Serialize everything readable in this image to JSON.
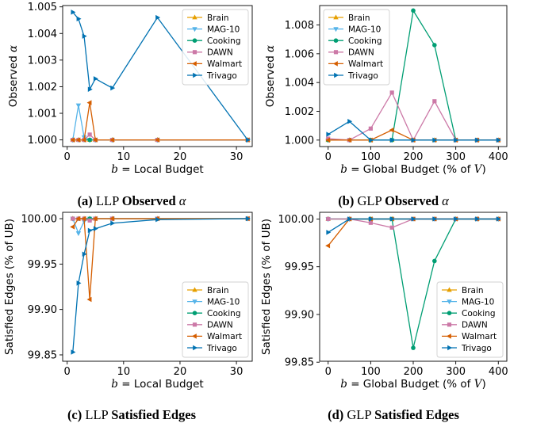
{
  "colors": {
    "Brain": "#E69F00",
    "MAG-10": "#56B4E9",
    "Cooking": "#009E73",
    "DAWN": "#CC79A7",
    "Walmart": "#D55E00",
    "Trivago": "#0072B2"
  },
  "chart_data": [
    {
      "type": "line",
      "id": "a",
      "caption": {
        "tag": "(a)",
        "plain": "LLP",
        "bold": "Observed",
        "math": "α"
      },
      "xlabel": {
        "var": "b",
        "rest": " = Local Budget"
      },
      "ylabel": {
        "text": "Observed ",
        "math": "α"
      },
      "xlim": [
        -0.8,
        32.8
      ],
      "ylim": [
        0.99975,
        1.00505
      ],
      "xticks": [
        0,
        10,
        20,
        30
      ],
      "yticks": [
        1.0,
        1.001,
        1.002,
        1.003,
        1.004,
        1.005
      ],
      "ytick_labels": [
        "1.000",
        "1.001",
        "1.002",
        "1.003",
        "1.004",
        "1.005"
      ],
      "legend": "top-right",
      "series": [
        {
          "name": "Brain",
          "marker": "tri-up",
          "x": [
            1,
            2,
            3,
            4,
            5,
            8,
            16,
            32
          ],
          "y": [
            1.0,
            1.0,
            1.0,
            1.0,
            1.0,
            1.0,
            1.0,
            1.0
          ]
        },
        {
          "name": "MAG-10",
          "marker": "tri-down",
          "x": [
            1,
            2,
            3,
            4,
            5,
            8,
            16,
            32
          ],
          "y": [
            1.0,
            1.0013,
            1.0001,
            1.0,
            1.0,
            1.0,
            1.0,
            1.0
          ]
        },
        {
          "name": "Cooking",
          "marker": "circle",
          "x": [
            1,
            2,
            3,
            4,
            5,
            8,
            16,
            32
          ],
          "y": [
            1.0,
            1.0,
            1.0,
            1.0,
            1.0,
            1.0,
            1.0,
            1.0
          ]
        },
        {
          "name": "DAWN",
          "marker": "square",
          "x": [
            1,
            2,
            3,
            4,
            5,
            8,
            16,
            32
          ],
          "y": [
            1.0,
            1.0,
            1.0,
            1.0002,
            1.0,
            1.0,
            1.0,
            1.0
          ]
        },
        {
          "name": "Walmart",
          "marker": "tri-left",
          "x": [
            1,
            2,
            3,
            4,
            5,
            8,
            16,
            32
          ],
          "y": [
            1.0,
            1.0,
            1.0,
            1.0014,
            1.0,
            1.0,
            1.0,
            1.0
          ]
        },
        {
          "name": "Trivago",
          "marker": "tri-right",
          "x": [
            1,
            2,
            3,
            4,
            5,
            8,
            16,
            32
          ],
          "y": [
            1.0048,
            1.00455,
            1.0039,
            1.0019,
            1.0023,
            1.00195,
            1.0046,
            1.0
          ]
        }
      ]
    },
    {
      "type": "line",
      "id": "b",
      "caption": {
        "tag": "(b)",
        "plain": "GLP",
        "bold": "Observed",
        "math": "α"
      },
      "xlabel": {
        "var": "b",
        "rest": " = Global Budget (% of ",
        "var2": "V",
        "rest2": ")"
      },
      "ylabel": {
        "text": "Observed ",
        "math": "α"
      },
      "xlim": [
        -20,
        420
      ],
      "ylim": [
        0.99955,
        1.00935
      ],
      "xticks": [
        0,
        100,
        200,
        300,
        400
      ],
      "yticks": [
        1.0,
        1.002,
        1.004,
        1.006,
        1.008
      ],
      "ytick_labels": [
        "1.000",
        "1.002",
        "1.004",
        "1.006",
        "1.008"
      ],
      "legend": "top-left",
      "series": [
        {
          "name": "Brain",
          "marker": "tri-up",
          "x": [
            0,
            50,
            100,
            150,
            200,
            250,
            300,
            350,
            400
          ],
          "y": [
            1.0,
            1.0,
            1.0,
            1.0,
            1.0,
            1.0,
            1.0,
            1.0,
            1.0
          ]
        },
        {
          "name": "MAG-10",
          "marker": "tri-down",
          "x": [
            0,
            50,
            100,
            150,
            200,
            250,
            300,
            350,
            400
          ],
          "y": [
            1.0,
            1.0,
            1.0,
            1.0,
            1.0,
            1.0,
            1.0,
            1.0,
            1.0
          ]
        },
        {
          "name": "Cooking",
          "marker": "circle",
          "x": [
            0,
            50,
            100,
            150,
            200,
            250,
            300,
            350,
            400
          ],
          "y": [
            1.0,
            1.0,
            1.0,
            1.0,
            1.009,
            1.0066,
            1.0,
            1.0,
            1.0
          ]
        },
        {
          "name": "DAWN",
          "marker": "square",
          "x": [
            0,
            50,
            100,
            150,
            200,
            250,
            300,
            350,
            400
          ],
          "y": [
            1.0001,
            1.0,
            1.0008,
            1.0033,
            1.0,
            1.0027,
            1.0,
            1.0,
            1.0
          ]
        },
        {
          "name": "Walmart",
          "marker": "tri-left",
          "x": [
            0,
            50,
            100,
            150,
            200,
            250,
            300,
            350,
            400
          ],
          "y": [
            1.0,
            1.0,
            1.0,
            1.0007,
            1.0,
            1.0,
            1.0,
            1.0,
            1.0
          ]
        },
        {
          "name": "Trivago",
          "marker": "tri-right",
          "x": [
            0,
            50,
            100,
            150,
            200,
            250,
            300,
            350,
            400
          ],
          "y": [
            1.0004,
            1.0013,
            1.0,
            1.0,
            1.0,
            1.0,
            1.0,
            1.0,
            1.0
          ]
        }
      ]
    },
    {
      "type": "line",
      "id": "c",
      "caption": {
        "tag": "(c)",
        "plain": "LLP",
        "bold": "Satisfied Edges",
        "math": ""
      },
      "xlabel": {
        "var": "b",
        "rest": " = Local Budget"
      },
      "ylabel": {
        "text": "Satisfied Edges (% of UB)",
        "math": ""
      },
      "xlim": [
        -0.8,
        32.8
      ],
      "ylim": [
        99.843,
        100.007
      ],
      "xticks": [
        0,
        10,
        20,
        30
      ],
      "yticks": [
        99.85,
        99.9,
        99.95,
        100.0
      ],
      "ytick_labels": [
        "99.85",
        "99.90",
        "99.95",
        "100.00"
      ],
      "legend": "bottom-right",
      "series": [
        {
          "name": "Brain",
          "marker": "tri-up",
          "x": [
            1,
            2,
            3,
            4,
            5,
            8,
            16,
            32
          ],
          "y": [
            100.0,
            100.0,
            100.0,
            100.0,
            100.0,
            100.0,
            100.0,
            100.0
          ]
        },
        {
          "name": "MAG-10",
          "marker": "tri-down",
          "x": [
            1,
            2,
            3,
            4,
            5,
            8,
            16,
            32
          ],
          "y": [
            100.0,
            99.984,
            99.997,
            100.0,
            100.0,
            100.0,
            100.0,
            100.0
          ]
        },
        {
          "name": "Cooking",
          "marker": "circle",
          "x": [
            1,
            2,
            3,
            4,
            5,
            8,
            16,
            32
          ],
          "y": [
            100.0,
            100.0,
            100.0,
            100.0,
            100.0,
            100.0,
            100.0,
            100.0
          ]
        },
        {
          "name": "DAWN",
          "marker": "square",
          "x": [
            1,
            2,
            3,
            4,
            5,
            8,
            16,
            32
          ],
          "y": [
            100.0,
            100.0,
            100.0,
            99.998,
            100.0,
            100.0,
            100.0,
            100.0
          ]
        },
        {
          "name": "Walmart",
          "marker": "tri-left",
          "x": [
            1,
            2,
            3,
            4,
            5,
            8,
            16,
            32
          ],
          "y": [
            99.991,
            100.0,
            100.0,
            99.911,
            100.0,
            100.0,
            100.0,
            100.0
          ]
        },
        {
          "name": "Trivago",
          "marker": "tri-right",
          "x": [
            1,
            2,
            3,
            4,
            5,
            8,
            16,
            32
          ],
          "y": [
            99.853,
            99.929,
            99.961,
            99.987,
            99.989,
            99.995,
            99.999,
            100.0
          ]
        }
      ]
    },
    {
      "type": "line",
      "id": "d",
      "caption": {
        "tag": "(d)",
        "plain": "GLP",
        "bold": "Satisfied Edges",
        "math": ""
      },
      "xlabel": {
        "var": "b",
        "rest": " = Global Budget (% of ",
        "var2": "V",
        "rest2": ")"
      },
      "ylabel": {
        "text": "Satisfied Edges (% of UB)",
        "math": ""
      },
      "xlim": [
        -20,
        420
      ],
      "ylim": [
        99.851,
        100.007
      ],
      "xticks": [
        0,
        100,
        200,
        300,
        400
      ],
      "yticks": [
        99.85,
        99.9,
        99.95,
        100.0
      ],
      "ytick_labels": [
        "99.85",
        "99.90",
        "99.95",
        "100.00"
      ],
      "legend": "bottom-right",
      "series": [
        {
          "name": "Brain",
          "marker": "tri-up",
          "x": [
            0,
            50,
            100,
            150,
            200,
            250,
            300,
            350,
            400
          ],
          "y": [
            100.0,
            100.0,
            100.0,
            100.0,
            100.0,
            100.0,
            100.0,
            100.0,
            100.0
          ]
        },
        {
          "name": "MAG-10",
          "marker": "tri-down",
          "x": [
            0,
            50,
            100,
            150,
            200,
            250,
            300,
            350,
            400
          ],
          "y": [
            100.0,
            100.0,
            100.0,
            100.0,
            100.0,
            100.0,
            100.0,
            100.0,
            100.0
          ]
        },
        {
          "name": "Cooking",
          "marker": "circle",
          "x": [
            0,
            50,
            100,
            150,
            200,
            250,
            300,
            350,
            400
          ],
          "y": [
            100.0,
            100.0,
            100.0,
            100.0,
            99.865,
            99.956,
            100.0,
            100.0,
            100.0
          ]
        },
        {
          "name": "DAWN",
          "marker": "square",
          "x": [
            0,
            50,
            100,
            150,
            200,
            250,
            300,
            350,
            400
          ],
          "y": [
            100.0,
            100.0,
            99.996,
            99.991,
            100.0,
            100.0,
            100.0,
            100.0,
            100.0
          ]
        },
        {
          "name": "Walmart",
          "marker": "tri-left",
          "x": [
            0,
            50,
            100,
            150,
            200,
            250,
            300,
            350,
            400
          ],
          "y": [
            99.972,
            100.0,
            100.0,
            100.0,
            100.0,
            100.0,
            100.0,
            100.0,
            100.0
          ]
        },
        {
          "name": "Trivago",
          "marker": "tri-right",
          "x": [
            0,
            50,
            100,
            150,
            200,
            250,
            300,
            350,
            400
          ],
          "y": [
            99.986,
            100.0,
            100.0,
            100.0,
            100.0,
            100.0,
            100.0,
            100.0,
            100.0
          ]
        }
      ]
    }
  ]
}
